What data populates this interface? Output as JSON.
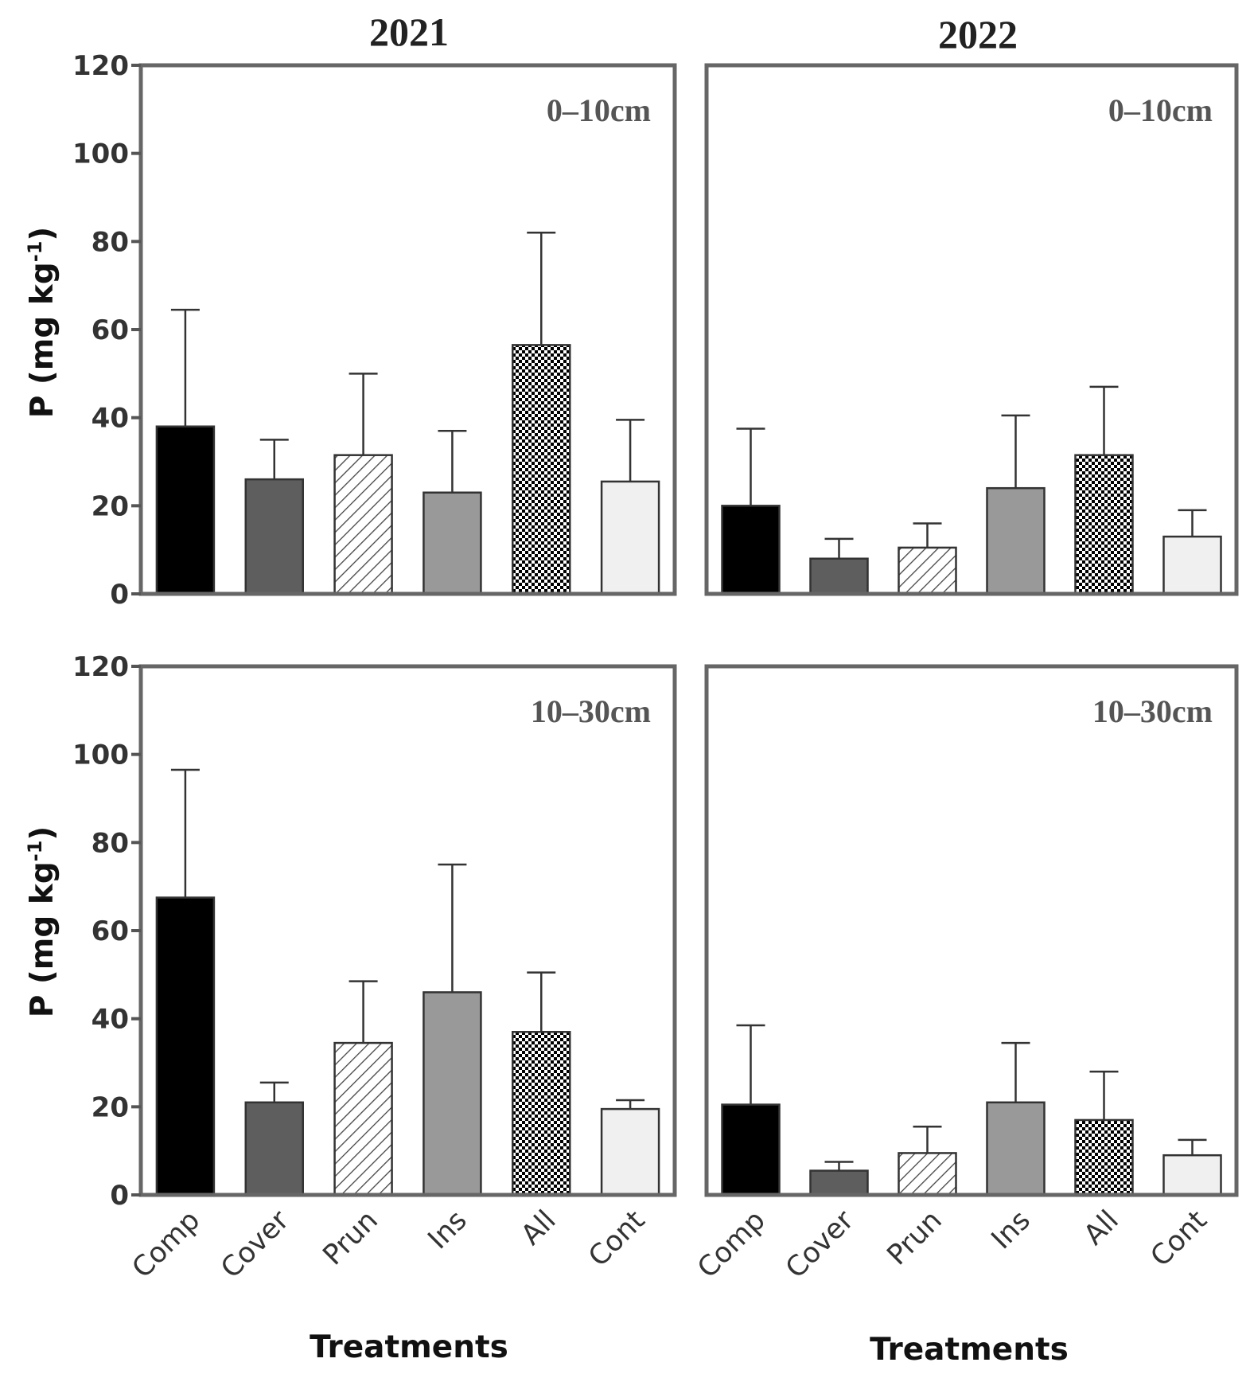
{
  "chart_data": {
    "type": "bar",
    "title": "",
    "columns": [
      "2021",
      "2022"
    ],
    "ylabel": {
      "main": "P (mg kg",
      "superscript": "-1",
      "close": ")"
    },
    "xlabel": "Treatments",
    "ylim": [
      0,
      120
    ],
    "yticks": [
      "0",
      "20",
      "40",
      "60",
      "80",
      "100",
      "120"
    ],
    "categories": [
      "Comp",
      "Cover",
      "Prun",
      "Ins",
      "All",
      "Cont"
    ],
    "fills": [
      {
        "category": "Comp",
        "style": "solid",
        "color": "#000000"
      },
      {
        "category": "Cover",
        "style": "solid",
        "color": "#5e5e5e"
      },
      {
        "category": "Prun",
        "style": "diagonal-hatch",
        "color": "#ffffff"
      },
      {
        "category": "Ins",
        "style": "solid",
        "color": "#999999"
      },
      {
        "category": "All",
        "style": "checker",
        "color": "#000000"
      },
      {
        "category": "Cont",
        "style": "solid",
        "color": "#f0f0f0"
      }
    ],
    "panels": [
      {
        "year": "2021",
        "depth": "0–10cm",
        "values": [
          38,
          26,
          31.5,
          23,
          56.5,
          25.5
        ],
        "error_upper": [
          64.5,
          35,
          50,
          37,
          82,
          39.5
        ]
      },
      {
        "year": "2022",
        "depth": "0–10cm",
        "values": [
          20,
          8,
          10.5,
          24,
          31.5,
          13
        ],
        "error_upper": [
          37.5,
          12.5,
          16,
          40.5,
          47,
          19
        ]
      },
      {
        "year": "2021",
        "depth": "10–30cm",
        "values": [
          67.5,
          21,
          34.5,
          46,
          37,
          19.5
        ],
        "error_upper": [
          96.5,
          25.5,
          48.5,
          75,
          50.5,
          21.5
        ]
      },
      {
        "year": "2022",
        "depth": "10–30cm",
        "values": [
          20.5,
          5.5,
          9.5,
          21,
          17,
          9
        ],
        "error_upper": [
          38.5,
          7.5,
          15.5,
          34.5,
          28,
          12.5
        ]
      }
    ]
  }
}
